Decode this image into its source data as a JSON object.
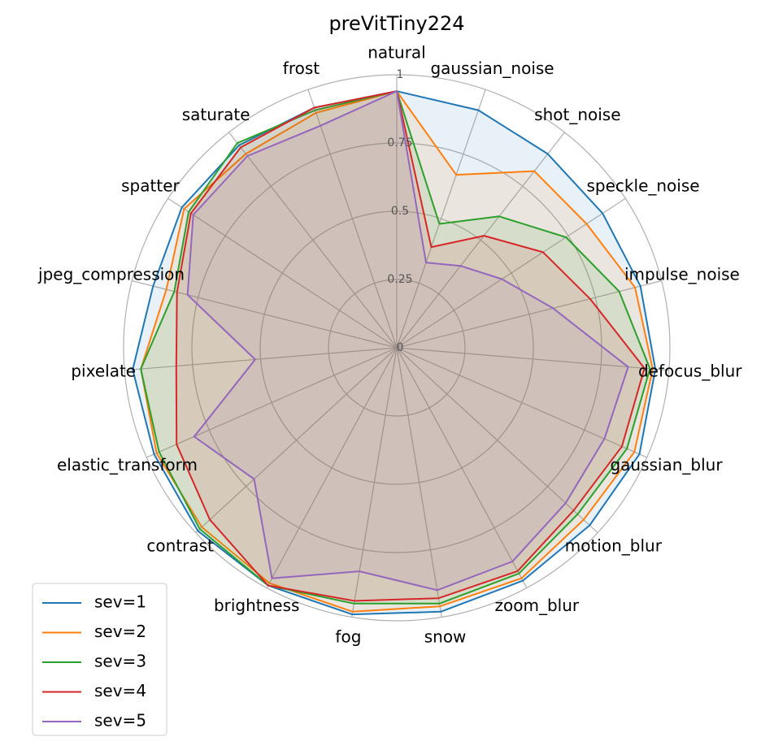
{
  "chart_data": {
    "type": "radar",
    "title": "preVitTiny224",
    "categories": [
      "natural",
      "gaussian_noise",
      "shot_noise",
      "speckle_noise",
      "impulse_noise",
      "defocus_blur",
      "gaussian_blur",
      "motion_blur",
      "zoom_blur",
      "snow",
      "fog",
      "brightness",
      "contrast",
      "elastic_transform",
      "pixelate",
      "jpeg_compression",
      "spatter",
      "saturate",
      "frost"
    ],
    "ylim": [
      0,
      1
    ],
    "yticks": [
      0,
      0.25,
      0.5,
      0.75,
      1
    ],
    "grid": true,
    "legend": "lower left",
    "series": [
      {
        "name": "sev=1",
        "color": "#1f77b4",
        "values": [
          0.94,
          0.92,
          0.9,
          0.9,
          0.92,
          0.95,
          0.97,
          0.96,
          0.97,
          0.98,
          0.99,
          0.99,
          0.99,
          0.97,
          0.97,
          0.92,
          0.94,
          0.94,
          0.93
        ]
      },
      {
        "name": "sev=2",
        "color": "#ff7f0e",
        "values": [
          0.94,
          0.67,
          0.82,
          0.83,
          0.9,
          0.94,
          0.95,
          0.93,
          0.96,
          0.96,
          0.98,
          0.98,
          0.97,
          0.96,
          0.94,
          0.87,
          0.93,
          0.9,
          0.91
        ]
      },
      {
        "name": "sev=3",
        "color": "#2ca02c",
        "values": [
          0.94,
          0.48,
          0.61,
          0.74,
          0.84,
          0.93,
          0.92,
          0.9,
          0.94,
          0.95,
          0.95,
          0.99,
          0.98,
          0.95,
          0.94,
          0.84,
          0.91,
          0.95,
          0.92
        ]
      },
      {
        "name": "sev=4",
        "color": "#d62728",
        "values": [
          0.94,
          0.39,
          0.52,
          0.64,
          0.73,
          0.91,
          0.9,
          0.88,
          0.93,
          0.93,
          0.94,
          0.99,
          0.93,
          0.88,
          0.81,
          0.83,
          0.9,
          0.93,
          0.93
        ]
      },
      {
        "name": "sev=5",
        "color": "#9467bd",
        "values": [
          0.94,
          0.33,
          0.38,
          0.46,
          0.59,
          0.85,
          0.83,
          0.84,
          0.89,
          0.9,
          0.83,
          0.96,
          0.71,
          0.81,
          0.52,
          0.79,
          0.89,
          0.89,
          0.86
        ]
      }
    ]
  }
}
